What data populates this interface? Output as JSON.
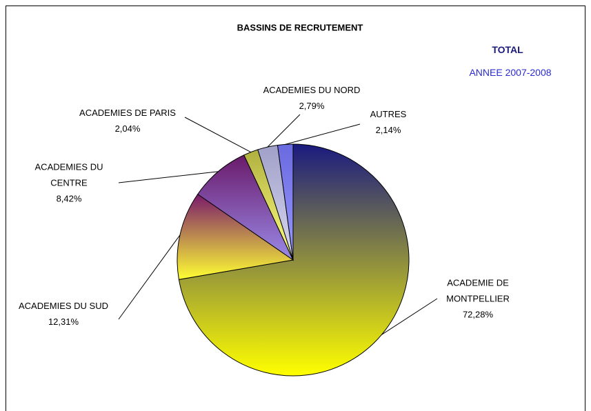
{
  "chart_data": {
    "type": "pie",
    "title": "BASSINS DE RECRUTEMENT",
    "subtitle": "TOTAL",
    "annotation": "ANNEE 2007-2008",
    "categories": [
      "ACADEMIE DE MONTPELLIER",
      "ACADEMIES DU SUD",
      "ACADEMIES DU CENTRE",
      "ACADEMIES DE PARIS",
      "ACADEMIES DU NORD",
      "AUTRES"
    ],
    "values": [
      72.28,
      12.31,
      8.42,
      2.04,
      2.79,
      2.14
    ],
    "value_labels": [
      "72,28%",
      "12,31%",
      "8,42%",
      "2,04%",
      "2,79%",
      "2,14%"
    ],
    "colors": [
      "#ffff00",
      "#ffff33",
      "#9a8ae8",
      "#ffff80",
      "#d8d8f2",
      "#9999ff"
    ]
  }
}
